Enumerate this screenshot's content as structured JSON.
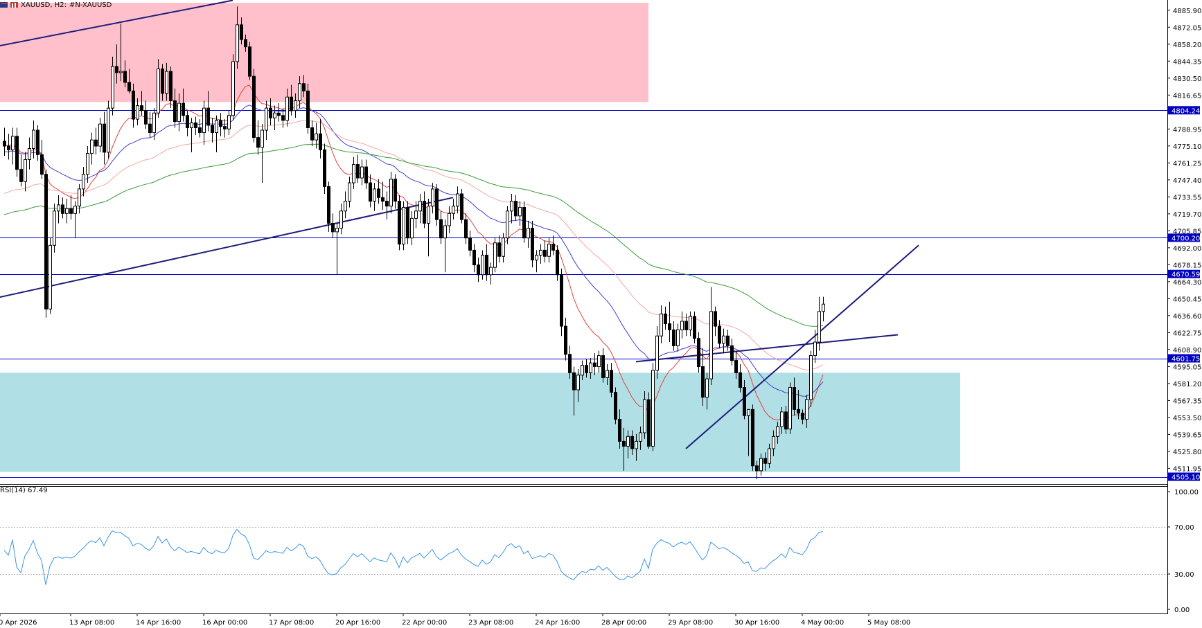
{
  "header": {
    "symbol_label": "XAUUSD, H2:",
    "description": "#N-XAUUSD"
  },
  "colors": {
    "supply_zone": "#ffc0cb",
    "demand_zone": "#b0dfe5",
    "level_line": "#0000c0",
    "trend_line": "#1c1c7a",
    "ma_fast": "#e8403a",
    "ma_mid": "#4040d0",
    "ma_slow": "#f4a8a0",
    "ma_long": "#3a9a3a",
    "rsi_line": "#3a96e8",
    "label_bg": "#0000c0",
    "label_text": "#ffffff"
  },
  "chart_data": {
    "type": "candlestick",
    "symbol": "XAUUSD",
    "timeframe": "H2",
    "price_axis": {
      "ylim": [
        4502.0,
        4892.0
      ],
      "ticks": [
        4885.9,
        4872.05,
        4858.2,
        4844.35,
        4830.5,
        4816.65,
        4788.95,
        4775.1,
        4761.25,
        4747.4,
        4733.55,
        4719.7,
        4705.85,
        4692.0,
        4678.15,
        4664.3,
        4650.45,
        4636.6,
        4622.75,
        4608.9,
        4595.05,
        4581.2,
        4567.35,
        4553.5,
        4539.65,
        4525.8,
        4511.95
      ],
      "tick_labels": [
        "4885.90",
        "4872.05",
        "4858.20",
        "4844.35",
        "4830.50",
        "4816.65",
        "4788.95",
        "4775.10",
        "4761.25",
        "4747.40",
        "4733.55",
        "4719.70",
        "4705.85",
        "4692.00",
        "4678.15",
        "4664.30",
        "4650.45",
        "4636.60",
        "4622.75",
        "4608.90",
        "4595.05",
        "4581.20",
        "4567.35",
        "4553.50",
        "4539.65",
        "4525.80",
        "4511.95"
      ]
    },
    "time_axis": {
      "labels": [
        "0 Apr 2026",
        "13 Apr 08:00",
        "14 Apr 16:00",
        "16 Apr 00:00",
        "17 Apr 08:00",
        "20 Apr 16:00",
        "22 Apr 00:00",
        "23 Apr 08:00",
        "24 Apr 16:00",
        "28 Apr 00:00",
        "29 Apr 08:00",
        "30 Apr 16:00",
        "4 May 00:00",
        "5 May 08:00"
      ],
      "bar_index": [
        0,
        16,
        32,
        48,
        64,
        80,
        96,
        112,
        128,
        144,
        160,
        176,
        192,
        208
      ]
    },
    "horizontal_levels": [
      {
        "price": 4804.24,
        "label": "4804.24"
      },
      {
        "price": 4700.2,
        "label": "4700.20"
      },
      {
        "price": 4670.59,
        "label": "4670.59"
      },
      {
        "price": 4601.75,
        "label": "4601.75"
      },
      {
        "price": 4505.1,
        "label": "4505.10"
      }
    ],
    "zones": [
      {
        "name": "supply",
        "bar_from": -10,
        "bar_to": 155,
        "price_from": 4811.0,
        "price_to": 4892.0
      },
      {
        "name": "demand",
        "bar_from": -10,
        "bar_to": 230,
        "price_from": 4509.0,
        "price_to": 4590.0
      }
    ],
    "trend_lines": [
      {
        "bar1": -10,
        "price1": 4851.0,
        "bar2": 55,
        "price2": 4894.0
      },
      {
        "bar1": -10,
        "price1": 4645.0,
        "bar2": 108,
        "price2": 4733.0
      },
      {
        "bar1": 152,
        "price1": 4599.0,
        "bar2": 215,
        "price2": 4621.0
      },
      {
        "bar1": 164,
        "price1": 4528.0,
        "bar2": 220,
        "price2": 4694.0
      }
    ],
    "rsi": {
      "period": 14,
      "current": 67.49,
      "label": "RSI(14) 67.49",
      "ylim": [
        0,
        100
      ],
      "ticks": [
        100.0,
        70.0,
        30.0,
        0.0
      ],
      "tick_labels": [
        "100.00",
        "70.00",
        "30.00",
        "0.00"
      ],
      "levels": [
        70,
        30
      ]
    },
    "ohlc": [
      [
        4779.0,
        4790.0,
        4767.0,
        4775.0
      ],
      [
        4775.0,
        4785.0,
        4764.0,
        4772.0
      ],
      [
        4772.0,
        4790.0,
        4760.0,
        4783.0
      ],
      [
        4783.0,
        4790.0,
        4750.0,
        4756.0
      ],
      [
        4756.0,
        4768.0,
        4742.0,
        4746.0
      ],
      [
        4746.0,
        4770.0,
        4738.0,
        4764.0
      ],
      [
        4764.0,
        4782.0,
        4756.0,
        4773.0
      ],
      [
        4773.0,
        4796.0,
        4765.0,
        4788.0
      ],
      [
        4788.0,
        4792.0,
        4763.0,
        4768.0
      ],
      [
        4768.0,
        4780.0,
        4748.0,
        4752.0
      ],
      [
        4752.0,
        4756.0,
        4635.0,
        4642.0
      ],
      [
        4642.0,
        4700.0,
        4638.0,
        4694.0
      ],
      [
        4694.0,
        4728.0,
        4688.0,
        4722.0
      ],
      [
        4722.0,
        4735.0,
        4712.0,
        4727.0
      ],
      [
        4727.0,
        4733.0,
        4716.0,
        4720.0
      ],
      [
        4720.0,
        4732.0,
        4712.0,
        4724.0
      ],
      [
        4724.0,
        4735.0,
        4715.0,
        4720.0
      ],
      [
        4720.0,
        4730.0,
        4700.0,
        4726.0
      ],
      [
        4726.0,
        4744.0,
        4720.0,
        4740.0
      ],
      [
        4740.0,
        4758.0,
        4734.0,
        4752.0
      ],
      [
        4752.0,
        4775.0,
        4745.0,
        4769.0
      ],
      [
        4769.0,
        4786.0,
        4760.0,
        4780.0
      ],
      [
        4780.0,
        4790.0,
        4768.0,
        4775.0
      ],
      [
        4775.0,
        4798.0,
        4770.0,
        4793.0
      ],
      [
        4793.0,
        4803.0,
        4760.0,
        4770.0
      ],
      [
        4770.0,
        4812.0,
        4765.0,
        4806.0
      ],
      [
        4806.0,
        4848.0,
        4800.0,
        4840.0
      ],
      [
        4840.0,
        4858.0,
        4826.0,
        4835.0
      ],
      [
        4835.0,
        4875.0,
        4828.0,
        4836.0
      ],
      [
        4836.0,
        4845.0,
        4823.0,
        4827.0
      ],
      [
        4827.0,
        4838.0,
        4818.0,
        4820.0
      ],
      [
        4820.0,
        4826.0,
        4790.0,
        4797.0
      ],
      [
        4797.0,
        4814.0,
        4792.0,
        4808.0
      ],
      [
        4808.0,
        4820.0,
        4800.0,
        4804.0
      ],
      [
        4804.0,
        4812.0,
        4789.0,
        4793.0
      ],
      [
        4793.0,
        4803.0,
        4782.0,
        4786.0
      ],
      [
        4786.0,
        4806.0,
        4780.0,
        4802.0
      ],
      [
        4802.0,
        4846.0,
        4798.0,
        4838.0
      ],
      [
        4838.0,
        4842.0,
        4812.0,
        4818.0
      ],
      [
        4818.0,
        4843.0,
        4812.0,
        4836.0
      ],
      [
        4836.0,
        4840.0,
        4806.0,
        4812.0
      ],
      [
        4812.0,
        4822.0,
        4790.0,
        4795.0
      ],
      [
        4795.0,
        4818.0,
        4787.0,
        4810.0
      ],
      [
        4810.0,
        4822.0,
        4795.0,
        4800.0
      ],
      [
        4800.0,
        4804.0,
        4783.0,
        4790.0
      ],
      [
        4790.0,
        4798.0,
        4770.0,
        4794.0
      ],
      [
        4794.0,
        4799.0,
        4784.0,
        4790.0
      ],
      [
        4790.0,
        4797.0,
        4782.0,
        4786.0
      ],
      [
        4786.0,
        4812.0,
        4776.0,
        4806.0
      ],
      [
        4806.0,
        4820.0,
        4787.0,
        4792.0
      ],
      [
        4792.0,
        4798.0,
        4778.0,
        4786.0
      ],
      [
        4786.0,
        4800.0,
        4770.0,
        4796.0
      ],
      [
        4796.0,
        4802.0,
        4783.0,
        4791.0
      ],
      [
        4791.0,
        4797.0,
        4782.0,
        4789.0
      ],
      [
        4789.0,
        4804.0,
        4784.0,
        4800.0
      ],
      [
        4800.0,
        4850.0,
        4796.0,
        4844.0
      ],
      [
        4844.0,
        4889.0,
        4838.0,
        4874.0
      ],
      [
        4874.0,
        4880.0,
        4858.0,
        4862.0
      ],
      [
        4862.0,
        4866.0,
        4852.0,
        4856.0
      ],
      [
        4856.0,
        4860.0,
        4829.0,
        4832.0
      ],
      [
        4832.0,
        4838.0,
        4778.0,
        4782.0
      ],
      [
        4782.0,
        4796.0,
        4768.0,
        4774.0
      ],
      [
        4774.0,
        4793.0,
        4745.0,
        4788.0
      ],
      [
        4788.0,
        4812.0,
        4780.0,
        4806.0
      ],
      [
        4806.0,
        4814.0,
        4792.0,
        4798.0
      ],
      [
        4798.0,
        4808.0,
        4788.0,
        4802.0
      ],
      [
        4802.0,
        4810.0,
        4795.0,
        4800.0
      ],
      [
        4800.0,
        4806.0,
        4790.0,
        4796.0
      ],
      [
        4796.0,
        4822.0,
        4791.0,
        4815.0
      ],
      [
        4815.0,
        4825.0,
        4800.0,
        4804.0
      ],
      [
        4804.0,
        4818.0,
        4798.0,
        4812.0
      ],
      [
        4812.0,
        4832.0,
        4806.0,
        4826.0
      ],
      [
        4826.0,
        4833.0,
        4815.0,
        4820.0
      ],
      [
        4820.0,
        4826.0,
        4785.0,
        4790.0
      ],
      [
        4790.0,
        4796.0,
        4775.0,
        4780.0
      ],
      [
        4780.0,
        4794.0,
        4773.0,
        4785.0
      ],
      [
        4785.0,
        4797.0,
        4765.0,
        4772.0
      ],
      [
        4772.0,
        4777.0,
        4736.0,
        4742.0
      ],
      [
        4742.0,
        4746.0,
        4705.0,
        4712.0
      ],
      [
        4712.0,
        4720.0,
        4700.0,
        4705.0
      ],
      [
        4705.0,
        4712.0,
        4670.0,
        4708.0
      ],
      [
        4708.0,
        4728.0,
        4703.0,
        4722.0
      ],
      [
        4722.0,
        4738.0,
        4716.0,
        4730.0
      ],
      [
        4730.0,
        4750.0,
        4725.0,
        4745.0
      ],
      [
        4745.0,
        4766.0,
        4740.0,
        4760.0
      ],
      [
        4760.0,
        4768.0,
        4745.0,
        4749.0
      ],
      [
        4749.0,
        4764.0,
        4743.0,
        4758.0
      ],
      [
        4758.0,
        4764.0,
        4740.0,
        4745.0
      ],
      [
        4745.0,
        4752.0,
        4725.0,
        4730.0
      ],
      [
        4730.0,
        4745.0,
        4722.0,
        4740.0
      ],
      [
        4740.0,
        4748.0,
        4728.0,
        4733.0
      ],
      [
        4733.0,
        4746.0,
        4723.0,
        4730.0
      ],
      [
        4730.0,
        4738.0,
        4715.0,
        4726.0
      ],
      [
        4726.0,
        4754.0,
        4720.0,
        4748.0
      ],
      [
        4748.0,
        4752.0,
        4724.0,
        4730.0
      ],
      [
        4730.0,
        4735.0,
        4690.0,
        4695.0
      ],
      [
        4695.0,
        4730.0,
        4690.0,
        4725.0
      ],
      [
        4725.0,
        4730.0,
        4695.0,
        4700.0
      ],
      [
        4700.0,
        4722.0,
        4694.0,
        4716.0
      ],
      [
        4716.0,
        4730.0,
        4708.0,
        4722.0
      ],
      [
        4722.0,
        4736.0,
        4712.0,
        4730.0
      ],
      [
        4730.0,
        4738.0,
        4708.0,
        4712.0
      ],
      [
        4712.0,
        4732.0,
        4685.0,
        4726.0
      ],
      [
        4726.0,
        4745.0,
        4720.0,
        4740.0
      ],
      [
        4740.0,
        4744.0,
        4710.0,
        4715.0
      ],
      [
        4715.0,
        4722.0,
        4695.0,
        4700.0
      ],
      [
        4700.0,
        4715.0,
        4672.0,
        4710.0
      ],
      [
        4710.0,
        4726.0,
        4704.0,
        4720.0
      ],
      [
        4720.0,
        4732.0,
        4715.0,
        4726.0
      ],
      [
        4726.0,
        4742.0,
        4720.0,
        4736.0
      ],
      [
        4736.0,
        4740.0,
        4712.0,
        4715.0
      ],
      [
        4715.0,
        4720.0,
        4695.0,
        4700.0
      ],
      [
        4700.0,
        4706.0,
        4685.0,
        4690.0
      ],
      [
        4690.0,
        4695.0,
        4672.0,
        4678.0
      ],
      [
        4678.0,
        4684.0,
        4664.0,
        4670.0
      ],
      [
        4670.0,
        4690.0,
        4666.0,
        4686.0
      ],
      [
        4686.0,
        4695.0,
        4665.0,
        4670.0
      ],
      [
        4670.0,
        4680.0,
        4662.0,
        4676.0
      ],
      [
        4676.0,
        4700.0,
        4672.0,
        4696.0
      ],
      [
        4696.0,
        4702.0,
        4680.0,
        4685.0
      ],
      [
        4685.0,
        4704.0,
        4680.0,
        4700.0
      ],
      [
        4700.0,
        4726.0,
        4695.0,
        4722.0
      ],
      [
        4722.0,
        4736.0,
        4712.0,
        4730.0
      ],
      [
        4730.0,
        4735.0,
        4714.0,
        4718.0
      ],
      [
        4718.0,
        4730.0,
        4710.0,
        4725.0
      ],
      [
        4725.0,
        4730.0,
        4696.0,
        4700.0
      ],
      [
        4700.0,
        4714.0,
        4692.0,
        4708.0
      ],
      [
        4708.0,
        4714.0,
        4676.0,
        4682.0
      ],
      [
        4682.0,
        4690.0,
        4672.0,
        4686.0
      ],
      [
        4686.0,
        4695.0,
        4679.0,
        4690.0
      ],
      [
        4690.0,
        4698.0,
        4680.0,
        4685.0
      ],
      [
        4685.0,
        4700.0,
        4680.0,
        4695.0
      ],
      [
        4695.0,
        4702.0,
        4686.0,
        4690.0
      ],
      [
        4690.0,
        4694.0,
        4665.0,
        4670.0
      ],
      [
        4670.0,
        4675.0,
        4620.0,
        4628.0
      ],
      [
        4628.0,
        4635.0,
        4600.0,
        4605.0
      ],
      [
        4605.0,
        4612.0,
        4585.0,
        4590.0
      ],
      [
        4590.0,
        4595.0,
        4555.0,
        4576.0
      ],
      [
        4576.0,
        4593.0,
        4566.0,
        4588.0
      ],
      [
        4588.0,
        4600.0,
        4584.0,
        4596.0
      ],
      [
        4596.0,
        4601.0,
        4586.0,
        4590.0
      ],
      [
        4590.0,
        4602.0,
        4585.0,
        4598.0
      ],
      [
        4598.0,
        4606.0,
        4588.0,
        4595.0
      ],
      [
        4595.0,
        4608.0,
        4590.0,
        4604.0
      ],
      [
        4604.0,
        4610.0,
        4582.0,
        4586.0
      ],
      [
        4586.0,
        4597.0,
        4580.0,
        4592.0
      ],
      [
        4592.0,
        4598.0,
        4570.0,
        4574.0
      ],
      [
        4574.0,
        4578.0,
        4548.0,
        4552.0
      ],
      [
        4552.0,
        4560.0,
        4528.0,
        4534.0
      ],
      [
        4534.0,
        4545.0,
        4510.0,
        4530.0
      ],
      [
        4530.0,
        4543.0,
        4520.0,
        4538.0
      ],
      [
        4538.0,
        4543.0,
        4523.0,
        4528.0
      ],
      [
        4528.0,
        4540.0,
        4518.0,
        4534.0
      ],
      [
        4534.0,
        4546.0,
        4527.0,
        4541.0
      ],
      [
        4541.0,
        4575.0,
        4536.0,
        4568.0
      ],
      [
        4568.0,
        4574.0,
        4528.0,
        4530.0
      ],
      [
        4530.0,
        4598.0,
        4526.0,
        4592.0
      ],
      [
        4592.0,
        4628.0,
        4585.0,
        4620.0
      ],
      [
        4620.0,
        4645.0,
        4614.0,
        4638.0
      ],
      [
        4638.0,
        4644.0,
        4625.0,
        4630.0
      ],
      [
        4630.0,
        4648.0,
        4615.0,
        4625.0
      ],
      [
        4625.0,
        4632.0,
        4608.0,
        4612.0
      ],
      [
        4612.0,
        4630.0,
        4607.0,
        4625.0
      ],
      [
        4625.0,
        4640.0,
        4618.0,
        4632.0
      ],
      [
        4632.0,
        4638.0,
        4620.0,
        4625.0
      ],
      [
        4625.0,
        4640.0,
        4620.0,
        4636.0
      ],
      [
        4636.0,
        4640.0,
        4614.0,
        4618.0
      ],
      [
        4618.0,
        4623.0,
        4590.0,
        4595.0
      ],
      [
        4595.0,
        4610.0,
        4563.0,
        4570.0
      ],
      [
        4570.0,
        4590.0,
        4560.0,
        4585.0
      ],
      [
        4585.0,
        4660.0,
        4580.0,
        4640.0
      ],
      [
        4640.0,
        4644.0,
        4620.0,
        4628.0
      ],
      [
        4628.0,
        4633.0,
        4610.0,
        4614.0
      ],
      [
        4614.0,
        4626.0,
        4606.0,
        4620.0
      ],
      [
        4620.0,
        4625.0,
        4608.0,
        4612.0
      ],
      [
        4612.0,
        4618.0,
        4596.0,
        4600.0
      ],
      [
        4600.0,
        4608.0,
        4585.0,
        4590.0
      ],
      [
        4590.0,
        4597.0,
        4574.0,
        4578.0
      ],
      [
        4578.0,
        4584.0,
        4552.0,
        4555.0
      ],
      [
        4555.0,
        4560.0,
        4522.0,
        4560.0
      ],
      [
        4560.0,
        4564.0,
        4510.0,
        4514.0
      ],
      [
        4514.0,
        4518.0,
        4503.0,
        4510.0
      ],
      [
        4510.0,
        4524.0,
        4506.0,
        4520.0
      ],
      [
        4520.0,
        4525.0,
        4510.0,
        4516.0
      ],
      [
        4516.0,
        4532.0,
        4512.0,
        4528.0
      ],
      [
        4528.0,
        4543.0,
        4522.0,
        4538.0
      ],
      [
        4538.0,
        4550.0,
        4532.0,
        4546.0
      ],
      [
        4546.0,
        4562.0,
        4540.0,
        4558.0
      ],
      [
        4558.0,
        4563.0,
        4540.0,
        4544.0
      ],
      [
        4544.0,
        4582.0,
        4540.0,
        4578.0
      ],
      [
        4578.0,
        4586.0,
        4555.0,
        4560.0
      ],
      [
        4560.0,
        4576.0,
        4552.0,
        4557.0
      ],
      [
        4557.0,
        4560.0,
        4548.0,
        4552.0
      ],
      [
        4552.0,
        4572.0,
        4545.0,
        4568.0
      ],
      [
        4568.0,
        4608.0,
        4562.0,
        4604.0
      ],
      [
        4604.0,
        4625.0,
        4598.0,
        4615.0
      ],
      [
        4615.0,
        4652.0,
        4608.0,
        4640.0
      ],
      [
        4640.0,
        4652.0,
        4632.0,
        4646.0
      ]
    ]
  }
}
